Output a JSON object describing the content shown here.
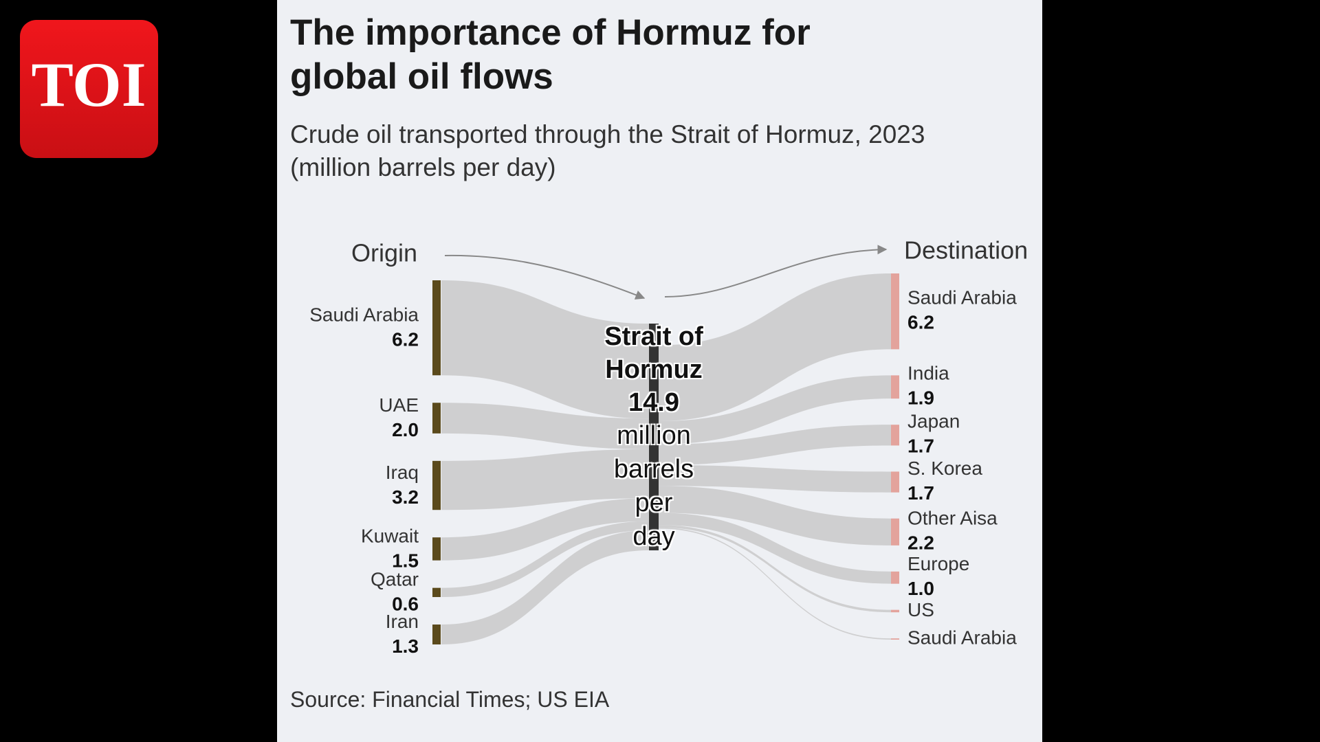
{
  "logo": {
    "text": "TOI"
  },
  "chart_data": {
    "type": "sankey",
    "title": "The importance of Hormuz for global oil flows",
    "subtitle": "Crude oil transported through the Strait of Hormuz, 2023 (million barrels per day)",
    "source": "Source: Financial Times; US EIA",
    "origin_label": "Origin",
    "destination_label": "Destination",
    "center": {
      "name": "Strait of Hormuz",
      "value": 14.9,
      "unit": "million barrels per day"
    },
    "origins": {
      "categories": [
        "Saudi Arabia",
        "UAE",
        "Iraq",
        "Kuwait",
        "Qatar",
        "Iran"
      ],
      "values": [
        6.2,
        2,
        3.2,
        1.5,
        0.6,
        1.3
      ],
      "value_labels": [
        "6.2",
        "2.0",
        "3.2",
        "1.5",
        "0.6",
        "1.3"
      ],
      "color": "#5b4a1c"
    },
    "destinations": {
      "categories": [
        "Saudi Arabia",
        "India",
        "Japan",
        "S. Korea",
        "Other Aisa",
        "Europe",
        "US",
        "Saudi Arabia"
      ],
      "values": [
        6.2,
        1.9,
        1.7,
        1.7,
        2.2,
        1,
        0.2,
        0.1
      ],
      "value_labels": [
        "6.2",
        "1.9",
        "1.7",
        "1.7",
        "2.2",
        "1.0",
        null,
        null
      ],
      "color": "#e3a39c"
    },
    "link_color": "#c9c9c9",
    "center_color": "#333333"
  }
}
